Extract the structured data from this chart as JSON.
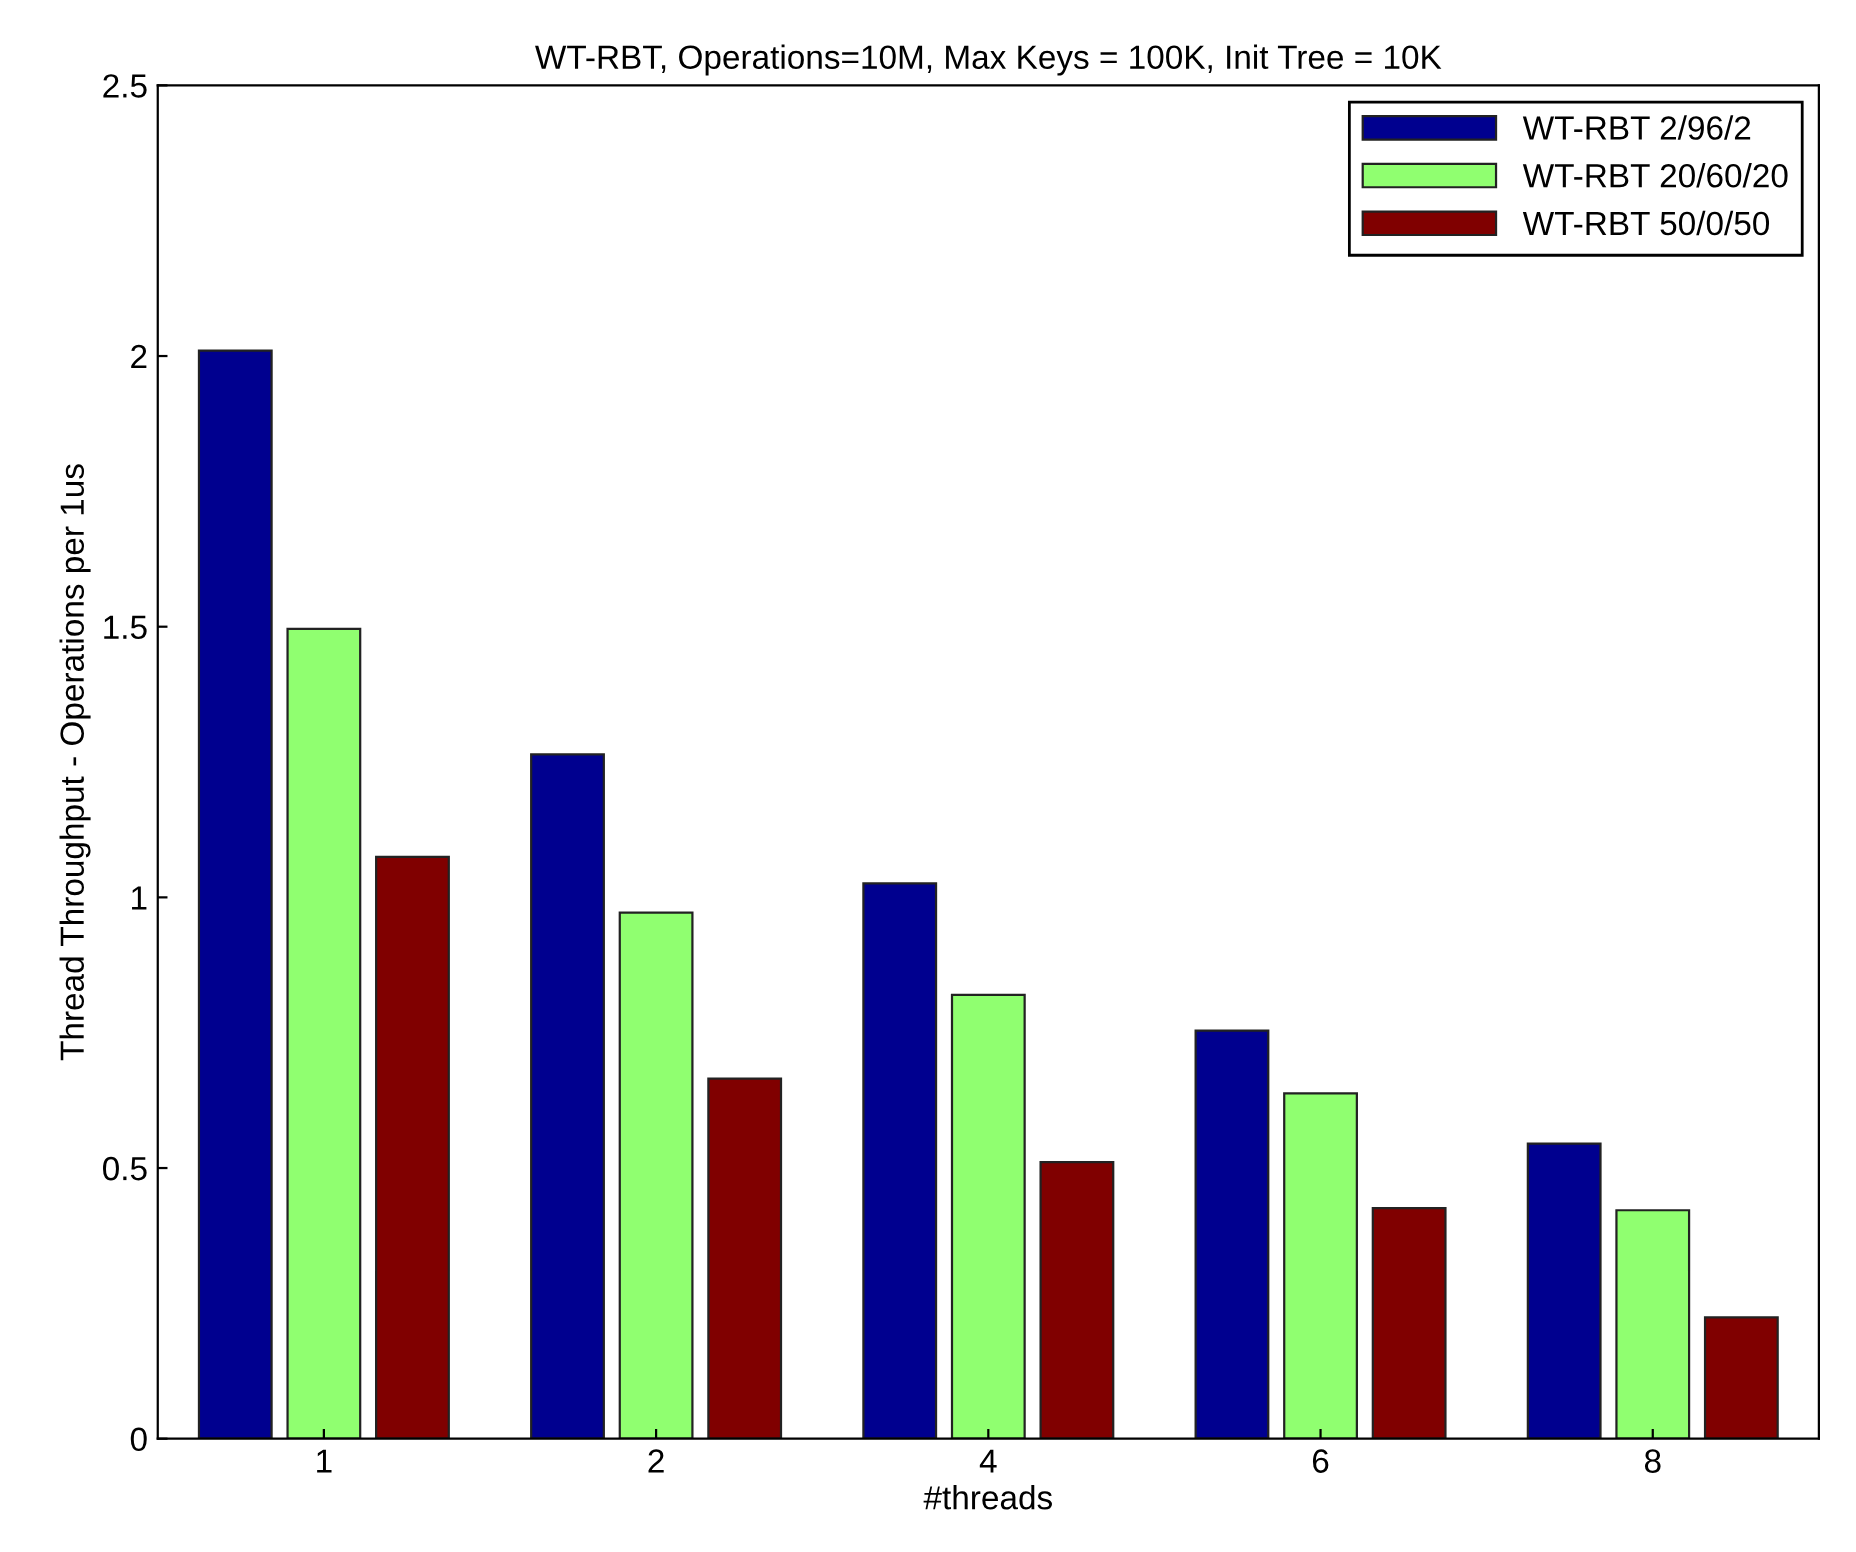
{
  "chart_data": {
    "type": "bar",
    "title": "WT-RBT, Operations=10M, Max Keys = 100K, Init Tree = 10K",
    "xlabel": "#threads",
    "ylabel": "Thread Throughput - Operations per 1us",
    "categories": [
      "1",
      "2",
      "4",
      "6",
      "8"
    ],
    "series": [
      {
        "name": "WT-RBT 2/96/2",
        "color": "#00008f",
        "values": [
          2.01,
          1.264,
          1.026,
          0.754,
          0.545
        ]
      },
      {
        "name": "WT-RBT 20/60/20",
        "color": "#90ff70",
        "values": [
          1.496,
          0.972,
          0.82,
          0.638,
          0.422
        ]
      },
      {
        "name": "WT-RBT 50/0/50",
        "color": "#800000",
        "values": [
          1.075,
          0.665,
          0.511,
          0.426,
          0.224
        ]
      }
    ],
    "ylim": [
      0,
      2.5
    ],
    "yticks": [
      0,
      0.5,
      1,
      1.5,
      2,
      2.5
    ],
    "grid": false,
    "legend": "top right"
  }
}
